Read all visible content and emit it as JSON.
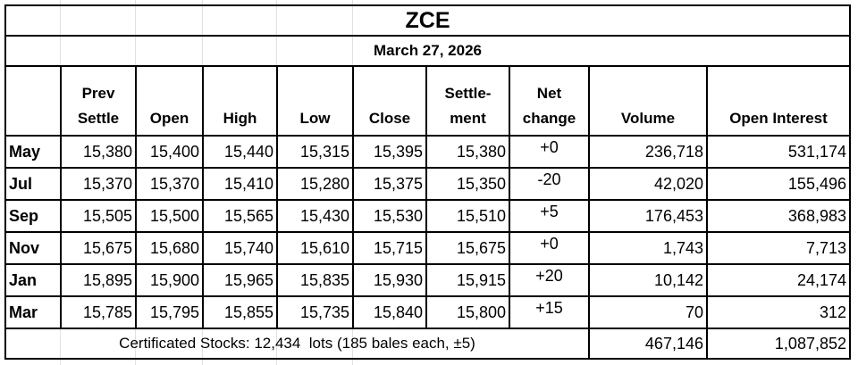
{
  "title": "ZCE",
  "date": "March 27, 2026",
  "headers": [
    {
      "line1": "",
      "line2": ""
    },
    {
      "line1": "Prev",
      "line2": "Settle"
    },
    {
      "line1": "",
      "line2": "Open"
    },
    {
      "line1": "",
      "line2": "High"
    },
    {
      "line1": "",
      "line2": "Low"
    },
    {
      "line1": "",
      "line2": "Close"
    },
    {
      "line1": "Settle-",
      "line2": "ment"
    },
    {
      "line1": "Net",
      "line2": "change"
    },
    {
      "line1": "",
      "line2": "Volume"
    },
    {
      "line1": "",
      "line2": "Open Interest"
    }
  ],
  "rows": [
    {
      "month": "May",
      "prev_settle": "15,380",
      "open": "15,400",
      "high": "15,440",
      "low": "15,315",
      "close": "15,395",
      "settlement": "15,380",
      "net_change": "+0",
      "volume": "236,718",
      "open_interest": "531,174"
    },
    {
      "month": "Jul",
      "prev_settle": "15,370",
      "open": "15,370",
      "high": "15,410",
      "low": "15,280",
      "close": "15,375",
      "settlement": "15,350",
      "net_change": "-20",
      "volume": "42,020",
      "open_interest": "155,496"
    },
    {
      "month": "Sep",
      "prev_settle": "15,505",
      "open": "15,500",
      "high": "15,565",
      "low": "15,430",
      "close": "15,530",
      "settlement": "15,510",
      "net_change": "+5",
      "volume": "176,453",
      "open_interest": "368,983"
    },
    {
      "month": "Nov",
      "prev_settle": "15,675",
      "open": "15,680",
      "high": "15,740",
      "low": "15,610",
      "close": "15,715",
      "settlement": "15,675",
      "net_change": "+0",
      "volume": "1,743",
      "open_interest": "7,713"
    },
    {
      "month": "Jan",
      "prev_settle": "15,895",
      "open": "15,900",
      "high": "15,965",
      "low": "15,835",
      "close": "15,930",
      "settlement": "15,915",
      "net_change": "+20",
      "volume": "10,142",
      "open_interest": "24,174"
    },
    {
      "month": "Mar",
      "prev_settle": "15,785",
      "open": "15,795",
      "high": "15,855",
      "low": "15,735",
      "close": "15,840",
      "settlement": "15,800",
      "net_change": "+15",
      "volume": "70",
      "open_interest": "312"
    }
  ],
  "footer": {
    "note": "Certificated Stocks: 12,434  lots (185 bales each, ±5)",
    "total_volume": "467,146",
    "total_open_interest": "1,087,852"
  }
}
